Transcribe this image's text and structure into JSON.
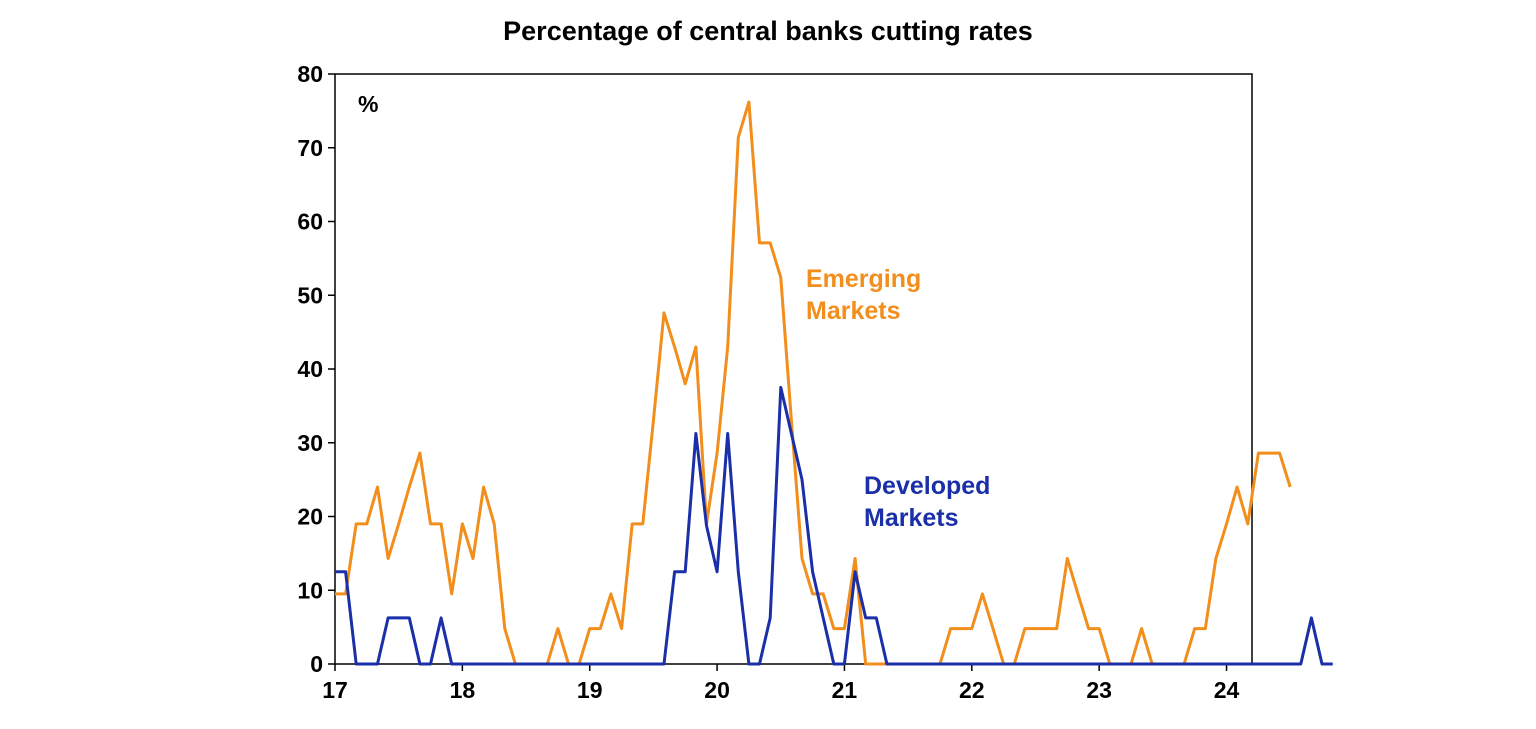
{
  "chart_data": {
    "type": "line",
    "title": "Percentage of central banks cutting rates",
    "unit_label": "%",
    "xlabel": "",
    "ylabel": "",
    "x_start": 2017.0,
    "x_step": 0.0833333,
    "xlim": [
      2017.0,
      2024.2
    ],
    "ylim": [
      0,
      80
    ],
    "y_ticks": [
      0,
      10,
      20,
      30,
      40,
      50,
      60,
      70,
      80
    ],
    "x_ticks": [
      {
        "value": 2017,
        "label": "17"
      },
      {
        "value": 2018,
        "label": "18"
      },
      {
        "value": 2019,
        "label": "19"
      },
      {
        "value": 2020,
        "label": "20"
      },
      {
        "value": 2021,
        "label": "21"
      },
      {
        "value": 2022,
        "label": "22"
      },
      {
        "value": 2023,
        "label": "23"
      },
      {
        "value": 2024,
        "label": "24"
      }
    ],
    "grid": false,
    "legend": "none",
    "series": [
      {
        "name": "Emerging Markets",
        "label_lines": [
          "Emerging",
          "Markets"
        ],
        "color": "#f28e1c",
        "values": [
          9.5,
          9.5,
          19,
          19,
          24,
          14.3,
          19,
          24,
          28.6,
          19,
          19,
          9.5,
          19,
          14.3,
          24,
          19,
          4.8,
          0,
          0,
          0,
          0,
          4.8,
          0,
          0,
          4.8,
          4.8,
          9.5,
          4.8,
          19,
          19,
          33,
          47.6,
          43,
          38,
          43,
          19,
          28.6,
          43,
          71.4,
          76.2,
          57.1,
          57.1,
          52.4,
          33,
          14.3,
          9.5,
          9.5,
          4.8,
          4.8,
          14.3,
          0,
          0,
          0,
          0,
          0,
          0,
          0,
          0,
          4.8,
          4.8,
          4.8,
          9.5,
          4.8,
          0,
          0,
          4.8,
          4.8,
          4.8,
          4.8,
          14.3,
          9.5,
          4.8,
          4.8,
          0,
          0,
          0,
          4.8,
          0,
          0,
          0,
          0,
          4.8,
          4.8,
          14.3,
          19,
          24,
          19,
          28.6,
          28.6,
          28.6,
          24
        ]
      },
      {
        "name": "Developed Markets",
        "label_lines": [
          "Developed",
          "Markets"
        ],
        "color": "#1a2fa8",
        "values": [
          12.5,
          12.5,
          0,
          0,
          0,
          6.25,
          6.25,
          6.25,
          0,
          0,
          6.25,
          0,
          0,
          0,
          0,
          0,
          0,
          0,
          0,
          0,
          0,
          0,
          0,
          0,
          0,
          0,
          0,
          0,
          0,
          0,
          0,
          0,
          12.5,
          12.5,
          31.25,
          18.75,
          12.5,
          31.25,
          12.5,
          0,
          0,
          6.25,
          37.5,
          31.25,
          25,
          12.5,
          6.25,
          0,
          0,
          12.5,
          6.25,
          6.25,
          0,
          0,
          0,
          0,
          0,
          0,
          0,
          0,
          0,
          0,
          0,
          0,
          0,
          0,
          0,
          0,
          0,
          0,
          0,
          0,
          0,
          0,
          0,
          0,
          0,
          0,
          0,
          0,
          0,
          0,
          0,
          0,
          0,
          0,
          0,
          0,
          0,
          0,
          0,
          0,
          6.25,
          0,
          0
        ]
      }
    ]
  }
}
